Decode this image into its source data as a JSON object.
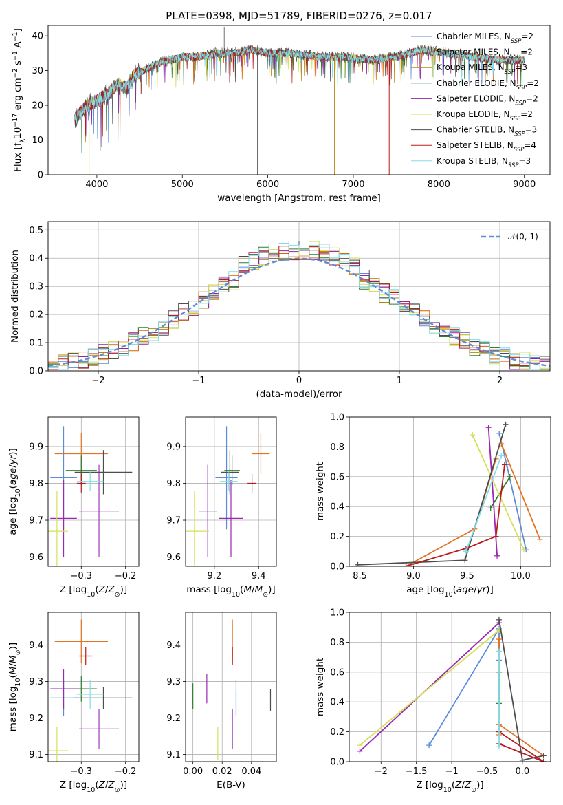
{
  "figure": {
    "title": "PLATE=0398, MJD=51789, FIBERID=0276, z=0.017"
  },
  "series_names": [
    "Chabrier MILES",
    "Salpeter MILES",
    "Kroupa MILES",
    "Chabrier ELODIE",
    "Salpeter ELODIE",
    "Kroupa ELODIE",
    "Chabrier STELIB",
    "Salpeter STELIB",
    "Kroupa STELIB"
  ],
  "colors": [
    "#5b8bd9",
    "#d95f02",
    "#b8860b",
    "#2e7d32",
    "#8e24aa",
    "#d4e157",
    "#4d4d4d",
    "#b71c1c",
    "#80deea"
  ],
  "colors_panel_errbar": [
    "#5b8bd9",
    "#e37222",
    "#9d3bb8",
    "#2e7d32",
    "#9c27b0",
    "#d4e157",
    "#4d4d4d",
    "#b71c1c",
    "#80deea"
  ],
  "chart_data": [
    {
      "id": "spectrum",
      "type": "line",
      "title": "PLATE=0398, MJD=51789, FIBERID=0276, z=0.017",
      "xlabel": "wavelength [Angstrom, rest frame]",
      "ylabel": "Flux [f_λ10^-17 erg cm^-2 s^-1 A^-1]",
      "xlim": [
        3430,
        9300
      ],
      "ylim": [
        0,
        43
      ],
      "xticks": [
        4000,
        5000,
        6000,
        7000,
        8000,
        9000
      ],
      "yticks": [
        0,
        10,
        20,
        30,
        40
      ],
      "x_range": [
        3740,
        9000
      ],
      "continuum_points": [
        [
          3740,
          16
        ],
        [
          3850,
          19
        ],
        [
          3950,
          21
        ],
        [
          4050,
          22
        ],
        [
          4150,
          24
        ],
        [
          4250,
          26
        ],
        [
          4350,
          25
        ],
        [
          4450,
          29
        ],
        [
          4550,
          30
        ],
        [
          4700,
          32
        ],
        [
          4850,
          33
        ],
        [
          5000,
          34
        ],
        [
          5200,
          34
        ],
        [
          5400,
          35
        ],
        [
          5600,
          35
        ],
        [
          5800,
          36
        ],
        [
          6000,
          35
        ],
        [
          6300,
          35
        ],
        [
          6600,
          34
        ],
        [
          6900,
          34
        ],
        [
          7200,
          33
        ],
        [
          7500,
          34
        ],
        [
          7800,
          36
        ],
        [
          8100,
          35
        ],
        [
          8400,
          34
        ],
        [
          8700,
          33
        ],
        [
          9000,
          33
        ]
      ],
      "spike_down": [
        [
          5880,
          0
        ],
        [
          6780,
          0
        ],
        [
          7420,
          0
        ],
        [
          3910,
          0
        ]
      ],
      "spike_up": [
        [
          5490,
          43
        ]
      ],
      "legend": [
        {
          "label": "Chabrier MILES, N",
          "sub": "SSP",
          "tail": "=2"
        },
        {
          "label": "Salpeter MILES, N",
          "sub": "SSP",
          "tail": "=2"
        },
        {
          "label": "Kroupa MILES, N",
          "sub": "SSP",
          "tail": "=3"
        },
        {
          "label": "Chabrier ELODIE, N",
          "sub": "SSP",
          "tail": "=2"
        },
        {
          "label": "Salpeter ELODIE, N",
          "sub": "SSP",
          "tail": "=2"
        },
        {
          "label": "Kroupa ELODIE, N",
          "sub": "SSP",
          "tail": "=2"
        },
        {
          "label": "Chabrier STELIB, N",
          "sub": "SSP",
          "tail": "=3"
        },
        {
          "label": "Salpeter STELIB, N",
          "sub": "SSP",
          "tail": "=4"
        },
        {
          "label": "Kroupa STELIB, N",
          "sub": "SSP",
          "tail": "=3"
        }
      ],
      "legend_position": "top-right",
      "grid": false
    },
    {
      "id": "residuals",
      "type": "histogram",
      "xlabel": "(data-model)/error",
      "ylabel": "Normed distribution",
      "xlim": [
        -2.5,
        2.5
      ],
      "ylim": [
        0,
        0.53
      ],
      "xticks": [
        -2,
        -1,
        0,
        1,
        2
      ],
      "yticks": [
        0.0,
        0.1,
        0.2,
        0.3,
        0.4,
        0.5
      ],
      "bin_width": 0.1,
      "legend": "𝒩(0, 1)",
      "legend_position": "top-right",
      "grid": true
    },
    {
      "id": "age_vs_Z",
      "type": "errorbar",
      "xlabel": "Z [log10(Z/Z⊙)]",
      "ylabel": "age  [log10(age/yr)]",
      "xlim": [
        -0.375,
        -0.17
      ],
      "ylim": [
        9.575,
        9.98
      ],
      "xticks": [
        -0.3,
        -0.2
      ],
      "yticks": [
        9.6,
        9.7,
        9.8,
        9.9
      ],
      "grid": true,
      "points": [
        {
          "x": -0.34,
          "xerr": 0.03,
          "y": 9.815,
          "yerr": 0.14
        },
        {
          "x": -0.3,
          "xerr": 0.06,
          "y": 9.88,
          "yerr": 0.055
        },
        {
          "x": -0.26,
          "xerr": 0.045,
          "y": 9.725,
          "yerr": 0.125
        },
        {
          "x": -0.3,
          "xerr": 0.035,
          "y": 9.835,
          "yerr": 0.04
        },
        {
          "x": -0.34,
          "xerr": 0.03,
          "y": 9.705,
          "yerr": 0.105
        },
        {
          "x": -0.355,
          "xerr": 0.025,
          "y": 9.67,
          "yerr": 0.11
        },
        {
          "x": -0.25,
          "xerr": 0.065,
          "y": 9.83,
          "yerr": 0.06
        },
        {
          "x": -0.3,
          "xerr": 0.01,
          "y": 9.8,
          "yerr": 0.025
        },
        {
          "x": -0.28,
          "xerr": 0.03,
          "y": 9.805,
          "yerr": 0.025
        }
      ]
    },
    {
      "id": "age_vs_mass",
      "type": "errorbar",
      "xlabel": "mass [log10(M/M⊙)]",
      "ylabel": "",
      "xlim": [
        9.07,
        9.48
      ],
      "ylim": [
        9.575,
        9.98
      ],
      "xticks": [
        9.2,
        9.4
      ],
      "yticks": [
        9.6,
        9.7,
        9.8,
        9.9
      ],
      "grid": true,
      "points": [
        {
          "x": 9.255,
          "xerr": 0.05,
          "y": 9.815,
          "yerr": 0.14
        },
        {
          "x": 9.41,
          "xerr": 0.04,
          "y": 9.88,
          "yerr": 0.055
        },
        {
          "x": 9.17,
          "xerr": 0.04,
          "y": 9.725,
          "yerr": 0.125
        },
        {
          "x": 9.28,
          "xerr": 0.035,
          "y": 9.835,
          "yerr": 0.04
        },
        {
          "x": 9.275,
          "xerr": 0.055,
          "y": 9.705,
          "yerr": 0.105
        },
        {
          "x": 9.11,
          "xerr": 0.065,
          "y": 9.67,
          "yerr": 0.11
        },
        {
          "x": 9.27,
          "xerr": 0.04,
          "y": 9.83,
          "yerr": 0.06
        },
        {
          "x": 9.37,
          "xerr": 0.02,
          "y": 9.8,
          "yerr": 0.025
        },
        {
          "x": 9.265,
          "xerr": 0.04,
          "y": 9.805,
          "yerr": 0.025
        }
      ]
    },
    {
      "id": "weight_vs_age",
      "type": "line",
      "xlabel": "age  [log10(age/yr)]",
      "ylabel": "mass weight",
      "xlim": [
        8.4,
        10.28
      ],
      "ylim": [
        0,
        1
      ],
      "xticks": [
        8.5,
        9.0,
        9.5,
        10.0
      ],
      "yticks": [
        0.0,
        0.2,
        0.4,
        0.6,
        0.8,
        1.0
      ],
      "grid": true,
      "lines": [
        {
          "x": [
            9.8,
            9.87,
            10.05
          ],
          "y": [
            0.89,
            0.68,
            0.11
          ]
        },
        {
          "x": [
            9.82,
            10.18
          ],
          "y": [
            0.82,
            0.18
          ]
        },
        {
          "x": [
            8.93,
            9.57,
            9.77
          ],
          "y": [
            0.0,
            0.25,
            0.72
          ]
        },
        {
          "x": [
            9.72,
            9.9
          ],
          "y": [
            0.39,
            0.6
          ]
        },
        {
          "x": [
            9.7,
            9.78
          ],
          "y": [
            0.93,
            0.07
          ]
        },
        {
          "x": [
            9.55,
            10.03
          ],
          "y": [
            0.88,
            0.11
          ]
        },
        {
          "x": [
            8.48,
            9.48,
            9.86
          ],
          "y": [
            0.01,
            0.04,
            0.95
          ]
        },
        {
          "x": [
            8.93,
            9.49,
            9.77,
            9.85
          ],
          "y": [
            0.0,
            0.12,
            0.2,
            0.68
          ]
        },
        {
          "x": [
            9.49,
            9.82
          ],
          "y": [
            0.1,
            0.74
          ]
        }
      ]
    },
    {
      "id": "mass_vs_Z",
      "type": "errorbar",
      "xlabel": "Z [log10(Z/Z⊙)]",
      "ylabel": "mass [log10(M/M⊙)]",
      "xlim": [
        -0.375,
        -0.17
      ],
      "ylim": [
        9.08,
        9.49
      ],
      "xticks": [
        -0.3,
        -0.2
      ],
      "yticks": [
        9.1,
        9.2,
        9.3,
        9.4
      ],
      "grid": true,
      "points": [
        {
          "x": -0.34,
          "xerr": 0.03,
          "y": 9.255,
          "yerr": 0.05
        },
        {
          "x": -0.3,
          "xerr": 0.06,
          "y": 9.41,
          "yerr": 0.06
        },
        {
          "x": -0.26,
          "xerr": 0.045,
          "y": 9.17,
          "yerr": 0.055
        },
        {
          "x": -0.3,
          "xerr": 0.035,
          "y": 9.28,
          "yerr": 0.035
        },
        {
          "x": -0.34,
          "xerr": 0.03,
          "y": 9.28,
          "yerr": 0.055
        },
        {
          "x": -0.355,
          "xerr": 0.025,
          "y": 9.11,
          "yerr": 0.065
        },
        {
          "x": -0.25,
          "xerr": 0.065,
          "y": 9.255,
          "yerr": 0.03
        },
        {
          "x": -0.29,
          "xerr": 0.015,
          "y": 9.37,
          "yerr": 0.025
        },
        {
          "x": -0.28,
          "xerr": 0.03,
          "y": 9.265,
          "yerr": 0.04
        }
      ]
    },
    {
      "id": "mass_vs_ebv",
      "type": "errorbar",
      "xlabel": "E(B-V)",
      "ylabel": "",
      "xlim": [
        -0.005,
        0.057
      ],
      "ylim": [
        9.08,
        9.49
      ],
      "xticks": [
        0.0,
        0.02,
        0.04
      ],
      "yticks": [
        9.1,
        9.2,
        9.3,
        9.4
      ],
      "grid": true,
      "points": [
        {
          "x": 0.0295,
          "y": 9.255,
          "yerr": 0.05
        },
        {
          "x": 0.027,
          "y": 9.41,
          "yerr": 0.06
        },
        {
          "x": 0.027,
          "y": 9.17,
          "yerr": 0.055
        },
        {
          "x": 0.0,
          "y": 9.26,
          "yerr": 0.035
        },
        {
          "x": 0.0095,
          "y": 9.28,
          "yerr": 0.04
        },
        {
          "x": 0.017,
          "y": 9.13,
          "yerr": 0.045
        },
        {
          "x": 0.053,
          "y": 9.25,
          "yerr": 0.03
        },
        {
          "x": 0.027,
          "y": 9.37,
          "yerr": 0.025
        },
        {
          "x": 0.0295,
          "y": 9.24,
          "yerr": 0.03
        }
      ]
    },
    {
      "id": "weight_vs_Z",
      "type": "line",
      "xlabel": "Z [log10(Z/Z⊙)]",
      "ylabel": "mass weight",
      "xlim": [
        -2.45,
        0.4
      ],
      "ylim": [
        0,
        1
      ],
      "xticks": [
        -2.0,
        -1.5,
        -1.0,
        -0.5,
        0.0
      ],
      "yticks": [
        0.0,
        0.2,
        0.4,
        0.6,
        0.8,
        1.0
      ],
      "grid": true,
      "lines": [
        {
          "x": [
            -1.32,
            -0.33,
            -0.33
          ],
          "y": [
            0.11,
            0.89,
            0.68
          ]
        },
        {
          "x": [
            -0.33,
            -0.33
          ],
          "y": [
            0.82,
            0.18
          ]
        },
        {
          "x": [
            -0.33,
            0.3
          ],
          "y": [
            0.25,
            0.04
          ]
        },
        {
          "x": [
            -0.33,
            -0.33
          ],
          "y": [
            0.39,
            0.6
          ]
        },
        {
          "x": [
            -2.3,
            -0.33
          ],
          "y": [
            0.07,
            0.93
          ]
        },
        {
          "x": [
            -2.3,
            -0.33
          ],
          "y": [
            0.11,
            0.88
          ]
        },
        {
          "x": [
            -0.33,
            0.0,
            0.3
          ],
          "y": [
            0.95,
            0.01,
            0.04
          ]
        },
        {
          "x": [
            -0.33,
            0.3,
            -0.33
          ],
          "y": [
            0.2,
            0.0,
            0.12
          ]
        },
        {
          "x": [
            -0.33,
            -0.33
          ],
          "y": [
            0.1,
            0.74
          ]
        }
      ]
    }
  ]
}
